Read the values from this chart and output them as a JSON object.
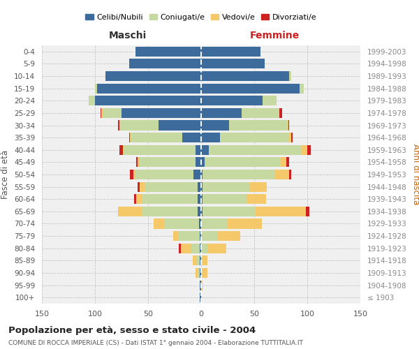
{
  "age_groups": [
    "0-4",
    "5-9",
    "10-14",
    "15-19",
    "20-24",
    "25-29",
    "30-34",
    "35-39",
    "40-44",
    "45-49",
    "50-54",
    "55-59",
    "60-64",
    "65-69",
    "70-74",
    "75-79",
    "80-84",
    "85-89",
    "90-94",
    "95-99",
    "100+"
  ],
  "birth_years": [
    "1999-2003",
    "1994-1998",
    "1989-1993",
    "1984-1988",
    "1979-1983",
    "1974-1978",
    "1969-1973",
    "1964-1968",
    "1959-1963",
    "1954-1958",
    "1949-1953",
    "1944-1948",
    "1939-1943",
    "1934-1938",
    "1929-1933",
    "1924-1928",
    "1919-1923",
    "1914-1918",
    "1909-1913",
    "1904-1908",
    "≤ 1903"
  ],
  "male_celibi": [
    62,
    68,
    90,
    98,
    100,
    75,
    40,
    18,
    5,
    5,
    7,
    3,
    3,
    3,
    2,
    1,
    1,
    1,
    1,
    1,
    1
  ],
  "male_coniugati": [
    0,
    0,
    0,
    2,
    6,
    18,
    36,
    48,
    68,
    53,
    55,
    50,
    53,
    53,
    33,
    20,
    8,
    3,
    2,
    0,
    0
  ],
  "male_vedovi": [
    0,
    0,
    0,
    0,
    0,
    1,
    1,
    1,
    1,
    2,
    2,
    5,
    5,
    22,
    10,
    5,
    10,
    4,
    2,
    0,
    0
  ],
  "male_divorziati": [
    0,
    0,
    0,
    0,
    0,
    1,
    1,
    1,
    3,
    1,
    3,
    2,
    2,
    0,
    0,
    0,
    2,
    0,
    0,
    0,
    0
  ],
  "female_celibi": [
    56,
    60,
    83,
    93,
    58,
    38,
    26,
    18,
    7,
    3,
    1,
    1,
    1,
    1,
    0,
    0,
    0,
    0,
    0,
    0,
    0
  ],
  "female_coniugati": [
    0,
    0,
    2,
    4,
    13,
    35,
    55,
    65,
    88,
    72,
    68,
    45,
    42,
    50,
    25,
    15,
    6,
    1,
    1,
    0,
    0
  ],
  "female_vedovi": [
    0,
    0,
    0,
    0,
    0,
    1,
    1,
    2,
    5,
    5,
    14,
    16,
    18,
    48,
    32,
    22,
    18,
    5,
    5,
    1,
    0
  ],
  "female_divorziati": [
    0,
    0,
    0,
    0,
    0,
    2,
    1,
    1,
    3,
    3,
    2,
    0,
    0,
    3,
    0,
    0,
    0,
    0,
    0,
    0,
    0
  ],
  "color_celibi": "#3d6b9c",
  "color_coniugati": "#c5d9a0",
  "color_vedovi": "#f5c96a",
  "color_divorziati": "#cc2222",
  "title": "Popolazione per età, sesso e stato civile - 2004",
  "subtitle": "COMUNE DI ROCCA IMPERIALE (CS) - Dati ISTAT 1° gennaio 2004 - Elaborazione TUTTITALIA.IT",
  "ylabel_left": "Fasce di età",
  "ylabel_right": "Anni di nascita",
  "label_maschi": "Maschi",
  "label_femmine": "Femmine",
  "legend_labels": [
    "Celibi/Nubili",
    "Coniugati/e",
    "Vedovi/e",
    "Divorziati/e"
  ],
  "xlim": 150,
  "bg_axes": "#f0f0f0",
  "grid_color": "#bbbbbb"
}
